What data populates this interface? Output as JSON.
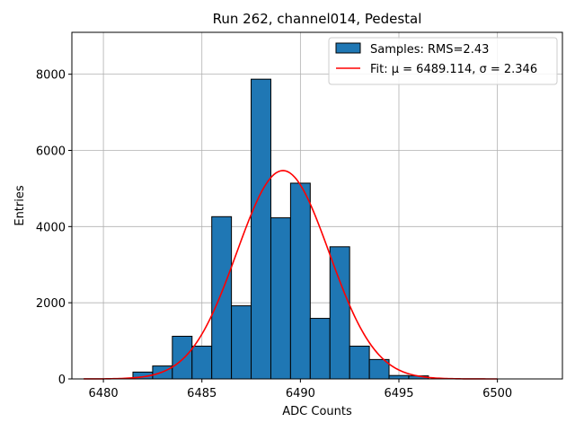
{
  "chart_data": {
    "type": "bar",
    "title": "Run 262, channel014, Pedestal",
    "xlabel": "ADC Counts",
    "ylabel": "Entries",
    "xlim": [
      6478.4,
      6503.3
    ],
    "ylim": [
      0,
      9100
    ],
    "xticks": [
      6480,
      6485,
      6490,
      6495,
      6500
    ],
    "yticks": [
      0,
      2000,
      4000,
      6000,
      8000
    ],
    "grid": true,
    "legend_position": "top-right",
    "bin_width": 1,
    "bins": [
      {
        "x": 6482,
        "count": 180
      },
      {
        "x": 6483,
        "count": 340
      },
      {
        "x": 6484,
        "count": 1120
      },
      {
        "x": 6485,
        "count": 860
      },
      {
        "x": 6486,
        "count": 4260
      },
      {
        "x": 6487,
        "count": 1920
      },
      {
        "x": 6488,
        "count": 7870
      },
      {
        "x": 6489,
        "count": 4230
      },
      {
        "x": 6490,
        "count": 5140
      },
      {
        "x": 6491,
        "count": 1590
      },
      {
        "x": 6492,
        "count": 3470
      },
      {
        "x": 6493,
        "count": 860
      },
      {
        "x": 6494,
        "count": 510
      },
      {
        "x": 6495,
        "count": 90
      },
      {
        "x": 6496,
        "count": 80
      }
    ],
    "fit": {
      "mu": 6489.114,
      "sigma": 2.346,
      "amplitude": 5470,
      "x_range": [
        6479,
        6500
      ]
    },
    "series": [
      {
        "name": "Samples: RMS=2.43",
        "kind": "histogram",
        "color": "#1f77b4",
        "edge_color": "#000000"
      },
      {
        "name": "Fit: μ = 6489.114, σ = 2.346",
        "kind": "line",
        "color": "#ff0000"
      }
    ]
  }
}
